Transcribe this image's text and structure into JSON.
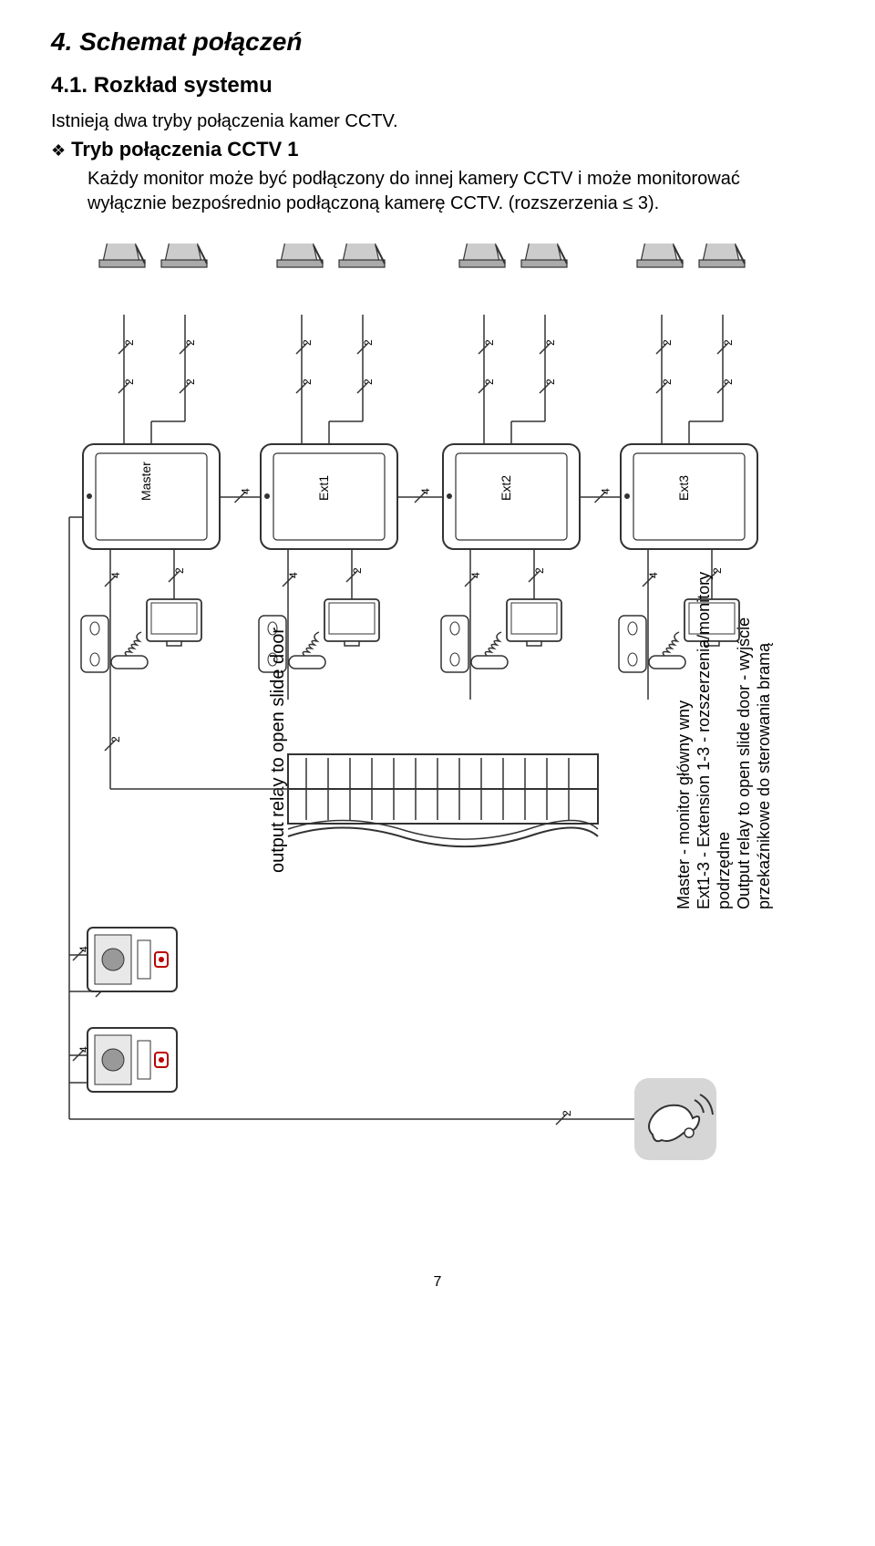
{
  "heading": "4. Schemat połączeń",
  "subheading": "4.1. Rozkład systemu",
  "intro": "Istnieją dwa tryby połączenia kamer CCTV.",
  "bullet_heading": "Tryb połączenia CCTV 1",
  "body": "Każdy monitor może być podłączony do innej kamery CCTV i może monitorować wyłącznie bezpośrednio podłączoną kamerę CCTV. (rozszerzenia ≤ 3).",
  "page_number": "7",
  "diagram": {
    "monitors": [
      "Master",
      "Ext1",
      "Ext2",
      "Ext3"
    ],
    "wire_count_2": "2",
    "wire_count_4": "4",
    "legend_gate": "output relay to open slide door",
    "legend_lines": [
      "Master - monitor główny wny",
      "Ext1-3 - Extension 1-3 - rozszerzenia/monitory",
      "podrzędne",
      "Output relay to open slide door - wyjście",
      "przekaźnikowe do sterowania bramą"
    ],
    "colors": {
      "stroke": "#555555",
      "stroke_dark": "#333333",
      "fill_light": "#e8e8e8",
      "fill_mid": "#cccccc",
      "fill_dark": "#999999",
      "bell_bg": "#d6d6d6"
    }
  }
}
